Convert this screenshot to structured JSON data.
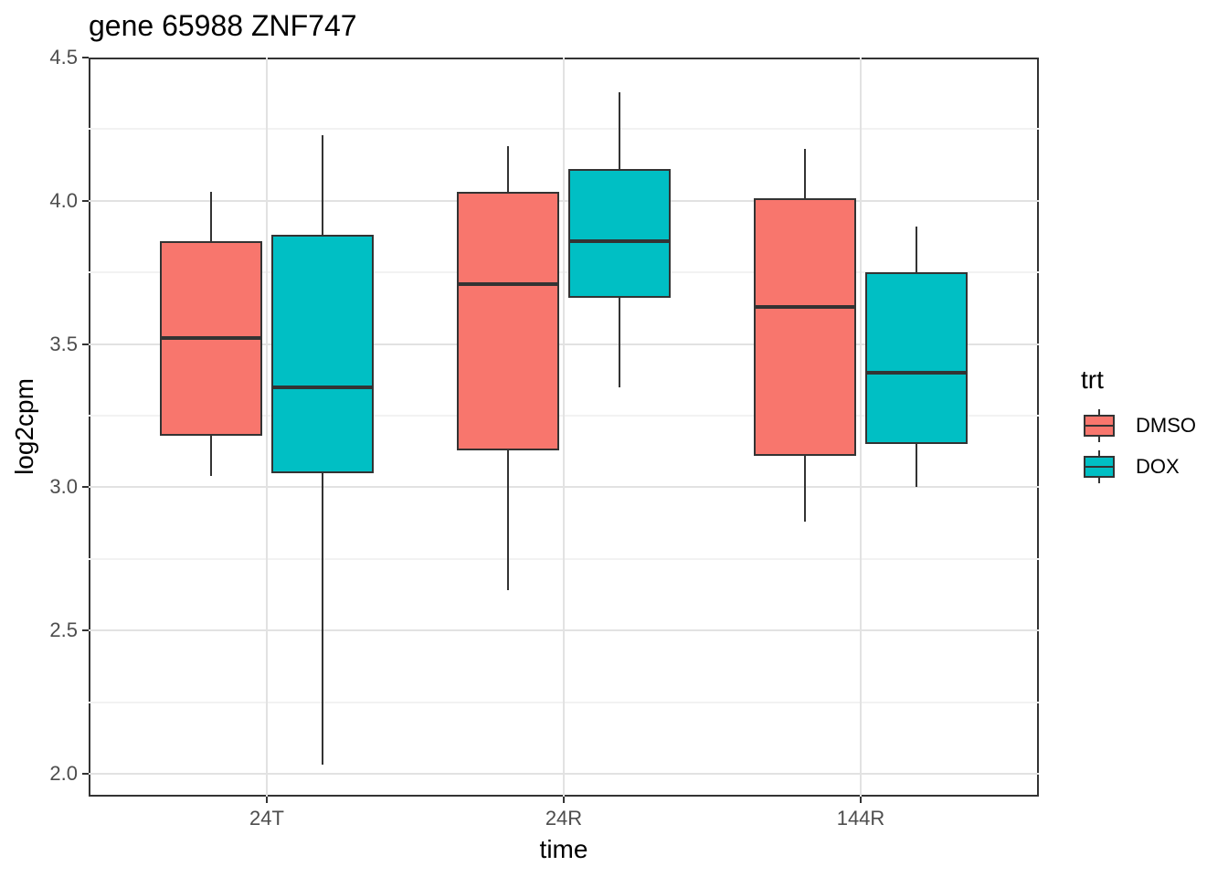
{
  "title": "gene 65988 ZNF747",
  "x_axis": {
    "title": "time",
    "categories": [
      "24T",
      "24R",
      "144R"
    ]
  },
  "y_axis": {
    "title": "log2cpm",
    "tick_labels": [
      "4.5",
      "4.0",
      "3.5",
      "3.0",
      "2.5",
      "2.0"
    ]
  },
  "legend": {
    "title": "trt",
    "items": [
      {
        "label": "DMSO",
        "color": "#F8766D"
      },
      {
        "label": "DOX",
        "color": "#00BFC4"
      }
    ]
  },
  "colors": {
    "dmso_fill": "#F8766D",
    "dox_fill": "#00BFC4",
    "box_border": "#333333",
    "median": "#333333",
    "whisker": "#333333",
    "grid_major": "#E2E2E2",
    "grid_minor": "#F2F2F2",
    "panel_border": "#333333",
    "tick_text": "#4D4D4D",
    "axis_text": "#000000"
  },
  "chart_data": {
    "type": "boxplot",
    "title": "gene 65988 ZNF747",
    "xlabel": "time",
    "ylabel": "log2cpm",
    "categories": [
      "24T",
      "24R",
      "144R"
    ],
    "y_ticks_major": [
      4.5,
      4.0,
      3.5,
      3.0,
      2.5,
      2.0
    ],
    "y_ticks_minor": [
      4.25,
      3.75,
      3.25,
      2.75,
      2.25
    ],
    "ylim_view": [
      1.92,
      4.5
    ],
    "grid": "horizontal major+minor, vertical major at category centers",
    "legend_position": "right",
    "series": [
      {
        "name": "DMSO",
        "color": "#F8766D",
        "boxes": [
          {
            "category": "24T",
            "whisker_low": 3.04,
            "q1": 3.18,
            "median": 3.52,
            "q3": 3.86,
            "whisker_high": 4.03
          },
          {
            "category": "24R",
            "whisker_low": 2.64,
            "q1": 3.13,
            "median": 3.71,
            "q3": 4.03,
            "whisker_high": 4.19
          },
          {
            "category": "144R",
            "whisker_low": 2.88,
            "q1": 3.11,
            "median": 3.63,
            "q3": 4.01,
            "whisker_high": 4.18
          }
        ]
      },
      {
        "name": "DOX",
        "color": "#00BFC4",
        "boxes": [
          {
            "category": "24T",
            "whisker_low": 2.03,
            "q1": 3.05,
            "median": 3.35,
            "q3": 3.88,
            "whisker_high": 4.23
          },
          {
            "category": "24R",
            "whisker_low": 3.35,
            "q1": 3.66,
            "median": 3.86,
            "q3": 4.11,
            "whisker_high": 4.38
          },
          {
            "category": "144R",
            "whisker_low": 3.0,
            "q1": 3.15,
            "median": 3.4,
            "q3": 3.75,
            "whisker_high": 3.91
          }
        ]
      }
    ]
  }
}
